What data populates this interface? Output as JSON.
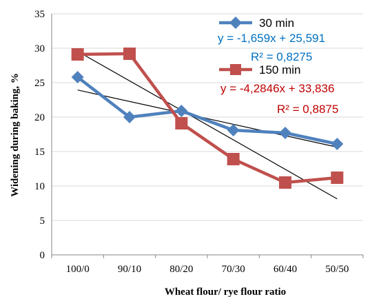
{
  "chart_data": {
    "type": "line",
    "title": "",
    "xlabel": "Wheat flour/ rye flour ratio",
    "ylabel": "Widening during baking, %",
    "categories": [
      "100/0",
      "90/10",
      "80/20",
      "70/30",
      "60/40",
      "50/50"
    ],
    "ylim": [
      0,
      35
    ],
    "yticks": [
      "0",
      "5",
      "10",
      "15",
      "20",
      "25",
      "30",
      "35"
    ],
    "grid": true,
    "series": [
      {
        "name": "30 min",
        "color": "#4F81BD",
        "marker": "diamond",
        "values": [
          25.8,
          20.0,
          20.9,
          18.1,
          17.7,
          16.1
        ],
        "trendline": {
          "equation": "y = -1,659x + 25,591",
          "r2": "R² = 0,8275",
          "color": "#0070C0"
        }
      },
      {
        "name": "150 min",
        "color": "#C0504D",
        "marker": "square",
        "values": [
          29.1,
          29.2,
          19.1,
          13.9,
          10.5,
          11.2
        ],
        "trendline": {
          "equation": "y = -4,2846x + 33,836",
          "r2": "R² = 0,8875",
          "color": "#C00000"
        }
      }
    ],
    "trend_coeffs": [
      {
        "slope": -1.659,
        "intercept": 25.591
      },
      {
        "slope": -4.2846,
        "intercept": 33.836
      }
    ]
  }
}
